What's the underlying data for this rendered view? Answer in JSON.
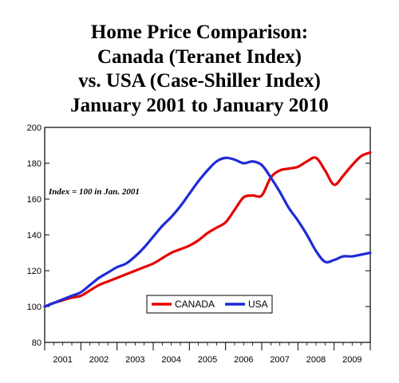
{
  "chart_data": {
    "type": "line",
    "title_lines": [
      "Home Price Comparison:",
      "Canada (Teranet Index)",
      "vs. USA (Case-Shiller Index)",
      "January 2001 to January 2010"
    ],
    "annotation": "Index = 100 in Jan. 2001",
    "ylim": [
      80,
      200
    ],
    "y_ticks": [
      80,
      100,
      120,
      140,
      160,
      180,
      200
    ],
    "x_ticks": [
      "2001",
      "2002",
      "2003",
      "2004",
      "2005",
      "2006",
      "2007",
      "2008",
      "2009"
    ],
    "xlim": [
      2001.0,
      2010.0
    ],
    "grid": false,
    "legend_position": "bottom-center",
    "series": [
      {
        "name": "CANADA",
        "color": "#e60000",
        "x": [
          2001.0,
          2001.25,
          2001.5,
          2001.75,
          2002.0,
          2002.25,
          2002.5,
          2002.75,
          2003.0,
          2003.25,
          2003.5,
          2003.75,
          2004.0,
          2004.25,
          2004.5,
          2004.75,
          2005.0,
          2005.25,
          2005.5,
          2005.75,
          2006.0,
          2006.25,
          2006.5,
          2006.75,
          2007.0,
          2007.25,
          2007.5,
          2007.75,
          2008.0,
          2008.25,
          2008.5,
          2008.75,
          2009.0,
          2009.25,
          2009.5,
          2009.75,
          2010.0
        ],
        "values": [
          100,
          102,
          103.5,
          105,
          106,
          109,
          112,
          114,
          116,
          118,
          120,
          122,
          124,
          127,
          130,
          132,
          134,
          137,
          141,
          144,
          147,
          154,
          161,
          162,
          162,
          172,
          176,
          177,
          178,
          181,
          183,
          176,
          168,
          173,
          179,
          184,
          186
        ]
      },
      {
        "name": "USA",
        "color": "#1f2bd6",
        "x": [
          2001.0,
          2001.25,
          2001.5,
          2001.75,
          2002.0,
          2002.25,
          2002.5,
          2002.75,
          2003.0,
          2003.25,
          2003.5,
          2003.75,
          2004.0,
          2004.25,
          2004.5,
          2004.75,
          2005.0,
          2005.25,
          2005.5,
          2005.75,
          2006.0,
          2006.25,
          2006.5,
          2006.75,
          2007.0,
          2007.25,
          2007.5,
          2007.75,
          2008.0,
          2008.25,
          2008.5,
          2008.75,
          2009.0,
          2009.25,
          2009.5,
          2009.75,
          2010.0
        ],
        "values": [
          100,
          102,
          104,
          106,
          108,
          112,
          116,
          119,
          122,
          124,
          128,
          133,
          139,
          145,
          150,
          156,
          163,
          170,
          176,
          181,
          183,
          182,
          180,
          181,
          179,
          172,
          164,
          155,
          148,
          140,
          131,
          125,
          126,
          128,
          128,
          129,
          130
        ]
      }
    ]
  }
}
